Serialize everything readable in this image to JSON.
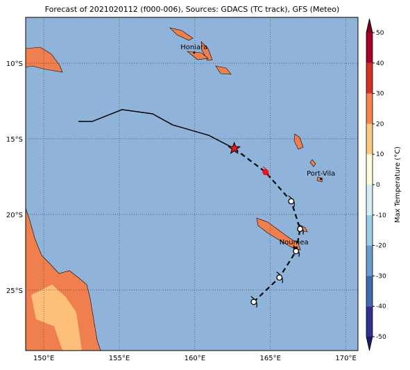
{
  "map": {
    "title": "Forecast of 2021020112 (f000-006), Sources: GDACS (TC track), GFS (Meteo)",
    "lonlim": [
      148.8,
      170.8
    ],
    "latlim": [
      -29.0,
      -6.97
    ],
    "lon_ticks": [
      {
        "value": 150,
        "label": "150°E"
      },
      {
        "value": 155,
        "label": "155°E"
      },
      {
        "value": 160,
        "label": "160°E"
      },
      {
        "value": 165,
        "label": "165°E"
      },
      {
        "value": 170,
        "label": "170°E"
      }
    ],
    "lat_ticks": [
      {
        "value": -10,
        "label": "10°S"
      },
      {
        "value": -15,
        "label": "15°S"
      },
      {
        "value": -20,
        "label": "20°S"
      },
      {
        "value": -25,
        "label": "25°S"
      }
    ],
    "places": [
      {
        "name": "Honiara",
        "lon": 159.95,
        "lat": -9.3
      },
      {
        "name": "Port-Vila",
        "lon": 168.35,
        "lat": -17.66
      },
      {
        "name": "Noumea",
        "lon": 166.56,
        "lat": -22.2
      }
    ],
    "track": {
      "past": {
        "lon": [
          152.29,
          153.21,
          155.18,
          157.2,
          158.53,
          160.92,
          162.61
        ],
        "lat": [
          -13.85,
          -13.85,
          -13.07,
          -13.35,
          -14.08,
          -14.77,
          -15.64
        ]
      },
      "forecast": {
        "lon": [
          162.61,
          164.68,
          166.38,
          166.97,
          166.7,
          165.6,
          163.9
        ],
        "lat": [
          -15.64,
          -17.2,
          -19.13,
          -20.96,
          -22.43,
          -24.17,
          -25.78
        ]
      }
    },
    "colorbar": {
      "label": "Max Temperature (°C)",
      "lim": [
        -50,
        50
      ],
      "ticks": [
        -50,
        -40,
        -30,
        -20,
        -10,
        0,
        10,
        20,
        30,
        40,
        50
      ],
      "colors": [
        "#1c1a6e",
        "#2e3192",
        "#4169ad",
        "#6a9ccc",
        "#9ccbe3",
        "#d3eef4",
        "#fefbd6",
        "#fec980",
        "#f4834c",
        "#d73027",
        "#a50026",
        "#7a0020"
      ]
    }
  }
}
